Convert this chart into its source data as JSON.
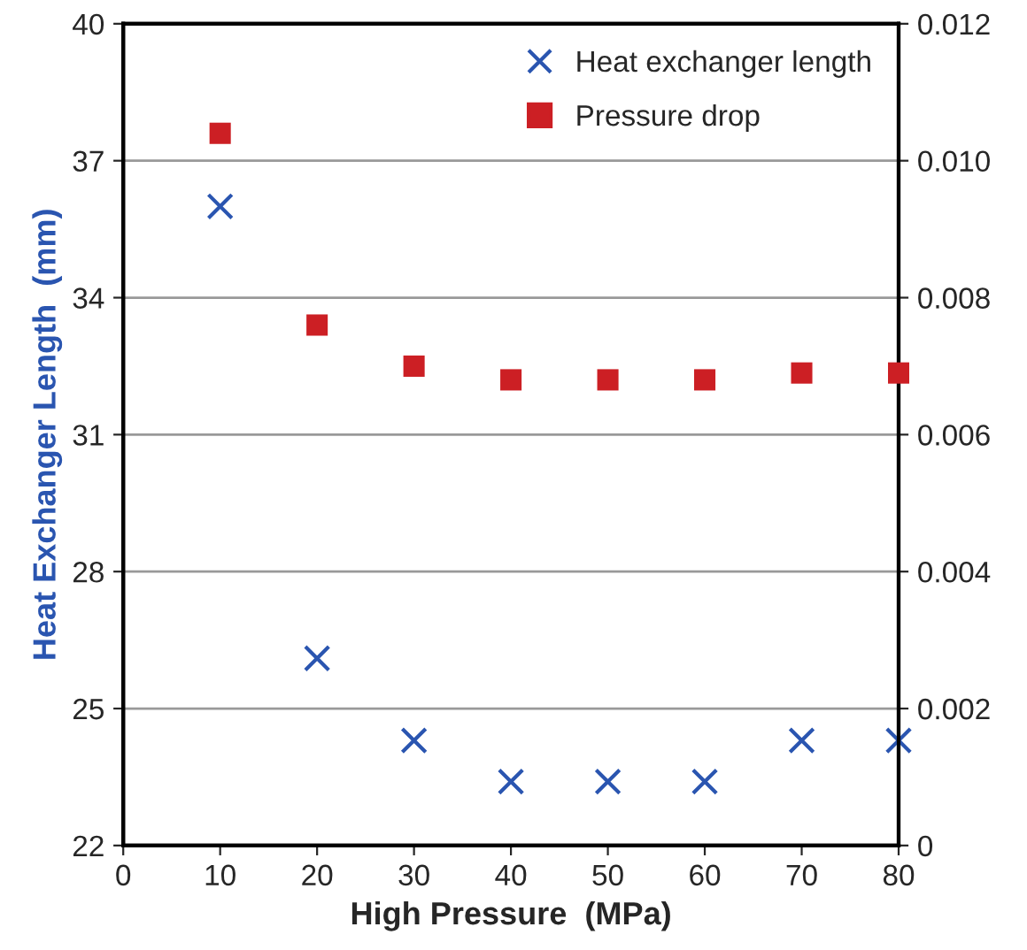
{
  "chart_data": {
    "type": "scatter",
    "xlabel": "High Pressure  (MPa)",
    "ylabel": "Heat Exchanger Length  (mm)",
    "x": [
      10,
      20,
      30,
      40,
      50,
      60,
      70,
      80
    ],
    "series": [
      {
        "name": "Heat exchanger length",
        "color": "#2a55b0",
        "marker": "cross",
        "values": [
          36.0,
          26.1,
          24.3,
          23.4,
          23.4,
          23.4,
          24.3,
          24.3
        ]
      },
      {
        "name": "Pressure drop",
        "color": "#cc1f24",
        "marker": "square",
        "axis": "y2",
        "values": [
          0.0104,
          0.0076,
          0.007,
          0.0068,
          0.0068,
          0.0068,
          0.0069,
          0.0069
        ]
      }
    ],
    "xlim": [
      0,
      80
    ],
    "xticks": [
      0,
      10,
      20,
      30,
      40,
      50,
      60,
      70,
      80
    ],
    "ylim": [
      22,
      40
    ],
    "yticks": [
      22,
      25,
      28,
      31,
      34,
      37,
      40
    ],
    "y2lim": [
      0,
      0.012
    ],
    "y2ticks": [
      0,
      0.002,
      0.004,
      0.006,
      0.008,
      {
        "value": 0.01,
        "label": "0.010"
      },
      0.012
    ],
    "grid": "y",
    "legend": "top right"
  }
}
